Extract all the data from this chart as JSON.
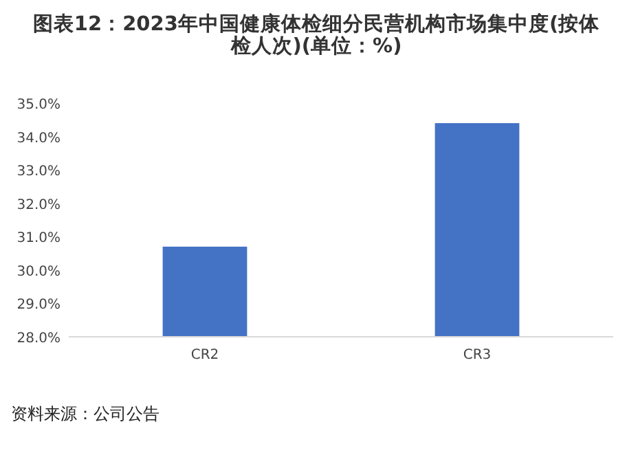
{
  "chart_data": {
    "type": "bar",
    "title": "图表12：2023年中国健康体检细分民营机构市场集中度(按体检人次)(单位：%)",
    "categories": [
      "CR2",
      "CR3"
    ],
    "values": [
      30.7,
      34.4
    ],
    "color": "#4472c4",
    "ylim": [
      28,
      35
    ],
    "yticks": [
      {
        "value": 28,
        "label": "28.0%"
      },
      {
        "value": 29,
        "label": "29.0%"
      },
      {
        "value": 30,
        "label": "30.0%"
      },
      {
        "value": 31,
        "label": "31.0%"
      },
      {
        "value": 32,
        "label": "32.0%"
      },
      {
        "value": 33,
        "label": "33.0%"
      },
      {
        "value": 34,
        "label": "34.0%"
      },
      {
        "value": 35,
        "label": "35.0%"
      }
    ],
    "grid": false,
    "annotations": [
      "资料来源：公司公告"
    ]
  }
}
